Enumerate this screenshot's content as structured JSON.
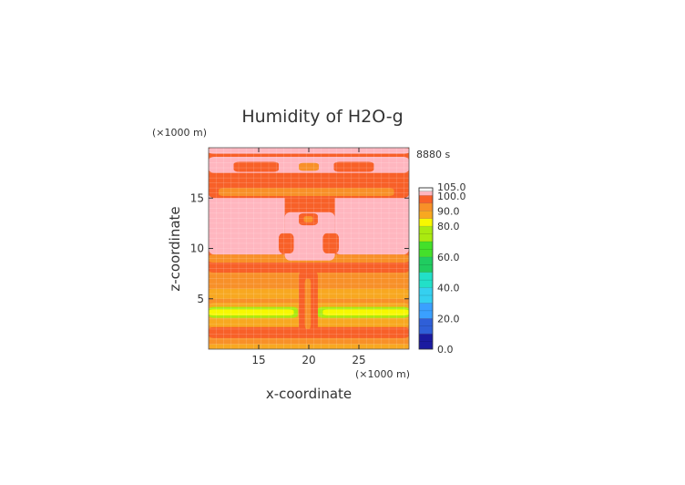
{
  "chart_data": {
    "type": "heatmap",
    "title": "Humidity of H2O-g",
    "time_label": "8880 s",
    "xlabel": "x-coordinate",
    "ylabel": "z-coordinate",
    "x_unit": "(×1000 m)",
    "y_unit": "(×1000 m)",
    "xlim": [
      10,
      30
    ],
    "ylim": [
      0,
      20
    ],
    "x_ticks": [
      15,
      20,
      25
    ],
    "y_ticks": [
      5,
      10,
      15
    ],
    "colorbar": {
      "ticks": [
        "0.0",
        "20.0",
        "40.0",
        "60.0",
        "80.0",
        "90.0",
        "100.0",
        "105.0"
      ],
      "tick_values": [
        0,
        20,
        40,
        60,
        80,
        90,
        100,
        105
      ],
      "range": [
        0,
        105
      ],
      "bands": [
        {
          "from": 0,
          "to": 10,
          "color": "#1a1aa0"
        },
        {
          "from": 10,
          "to": 20,
          "color": "#2f5fd8"
        },
        {
          "from": 20,
          "to": 30,
          "color": "#3aa0ff"
        },
        {
          "from": 30,
          "to": 40,
          "color": "#35d0f0"
        },
        {
          "from": 40,
          "to": 50,
          "color": "#22e0c8"
        },
        {
          "from": 50,
          "to": 60,
          "color": "#20cc60"
        },
        {
          "from": 60,
          "to": 70,
          "color": "#44e02a"
        },
        {
          "from": 70,
          "to": 80,
          "color": "#aaea10"
        },
        {
          "from": 80,
          "to": 85,
          "color": "#f8f800"
        },
        {
          "from": 85,
          "to": 90,
          "color": "#f8a820"
        },
        {
          "from": 90,
          "to": 95,
          "color": "#f89028"
        },
        {
          "from": 95,
          "to": 100,
          "color": "#f86028"
        },
        {
          "from": 100,
          "to": 105,
          "color": "#ffb6bf"
        }
      ]
    },
    "background_color": "#f86028",
    "regions": [
      {
        "color": "#f89028",
        "x": [
          10,
          30
        ],
        "y": [
          0,
          8.6
        ]
      },
      {
        "color": "#f8a820",
        "x": [
          10,
          30
        ],
        "y": [
          0,
          0.5
        ]
      },
      {
        "color": "#f8a820",
        "x": [
          10,
          30
        ],
        "y": [
          5.0,
          6.0
        ]
      },
      {
        "color": "#f8a820",
        "x": [
          10,
          30
        ],
        "y": [
          2.2,
          3.0
        ]
      },
      {
        "color": "#f86028",
        "x": [
          10,
          30
        ],
        "y": [
          1.1,
          2.2
        ]
      },
      {
        "color": "#f8a820",
        "x": [
          10,
          30
        ],
        "y": [
          2.5,
          4.6
        ]
      },
      {
        "color": "#aaea10",
        "x": [
          10,
          18.9
        ],
        "y": [
          3.1,
          4.2
        ]
      },
      {
        "color": "#aaea10",
        "x": [
          20.9,
          30
        ],
        "y": [
          3.1,
          4.2
        ]
      },
      {
        "color": "#f8f800",
        "x": [
          10,
          18.5
        ],
        "y": [
          3.35,
          3.95
        ]
      },
      {
        "color": "#f8f800",
        "x": [
          21.4,
          30
        ],
        "y": [
          3.35,
          3.95
        ]
      },
      {
        "color": "#f86028",
        "x": [
          19.0,
          20.9
        ],
        "y": [
          1.6,
          7.8
        ]
      },
      {
        "color": "#f89028",
        "x": [
          19.6,
          20.2
        ],
        "y": [
          2.0,
          7.0
        ]
      },
      {
        "color": "#f86028",
        "x": [
          10,
          30
        ],
        "y": [
          7.6,
          8.6
        ]
      },
      {
        "color": "#f89028",
        "x": [
          10,
          30
        ],
        "y": [
          8.6,
          9.4
        ]
      },
      {
        "color": "#ffb6bf",
        "x": [
          10,
          17.6
        ],
        "y": [
          9.4,
          16.0
        ]
      },
      {
        "color": "#ffb6bf",
        "x": [
          22.6,
          30
        ],
        "y": [
          9.4,
          16.0
        ]
      },
      {
        "color": "#ffb6bf",
        "x": [
          17.6,
          22.6
        ],
        "y": [
          8.8,
          13.6
        ]
      },
      {
        "color": "#f86028",
        "x": [
          17.0,
          18.5
        ],
        "y": [
          9.5,
          11.5
        ]
      },
      {
        "color": "#f86028",
        "x": [
          21.4,
          23.0
        ],
        "y": [
          9.5,
          11.5
        ]
      },
      {
        "color": "#f86028",
        "x": [
          19.0,
          20.9
        ],
        "y": [
          12.3,
          13.5
        ]
      },
      {
        "color": "#f89028",
        "x": [
          19.5,
          20.4
        ],
        "y": [
          12.6,
          13.2
        ]
      },
      {
        "color": "#f86028",
        "x": [
          10,
          30
        ],
        "y": [
          15.0,
          16.8
        ]
      },
      {
        "color": "#f89028",
        "x": [
          11.0,
          28.5
        ],
        "y": [
          15.2,
          16.0
        ]
      },
      {
        "color": "#ffb6bf",
        "x": [
          10,
          30
        ],
        "y": [
          17.5,
          19.1
        ]
      },
      {
        "color": "#f86028",
        "x": [
          12.5,
          17.0
        ],
        "y": [
          17.6,
          18.6
        ]
      },
      {
        "color": "#f86028",
        "x": [
          22.5,
          26.5
        ],
        "y": [
          17.6,
          18.6
        ]
      },
      {
        "color": "#f89028",
        "x": [
          19.0,
          21.0
        ],
        "y": [
          17.7,
          18.5
        ]
      },
      {
        "color": "#ffb6bf",
        "x": [
          10,
          30
        ],
        "y": [
          19.4,
          20.0
        ]
      }
    ]
  }
}
